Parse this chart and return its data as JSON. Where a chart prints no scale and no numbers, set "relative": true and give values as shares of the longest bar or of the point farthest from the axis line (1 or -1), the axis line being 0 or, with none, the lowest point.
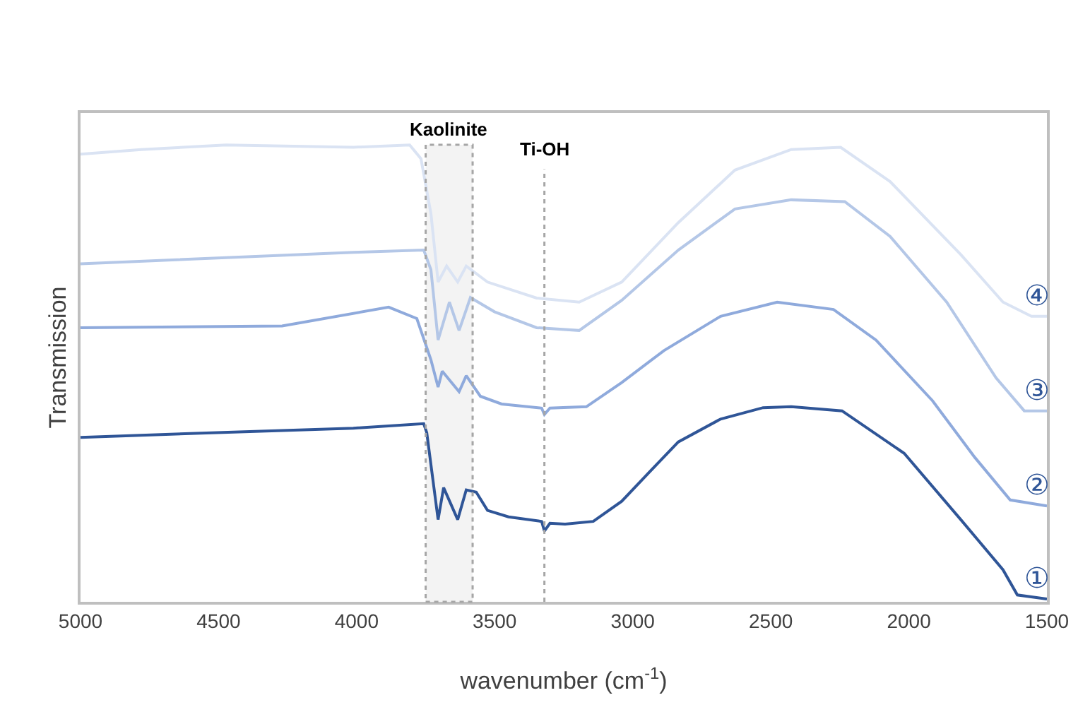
{
  "chart_data": {
    "type": "line",
    "relative": true,
    "xlabel": "wavenumber (cm$^{-1}$)",
    "ylabel": "Transmission",
    "xlim": [
      5000,
      1500
    ],
    "xticks": [
      5000,
      4500,
      4000,
      3500,
      3000,
      2500,
      2000,
      1500
    ],
    "grid": false,
    "legend": false,
    "marker": "none",
    "line_style": "solid",
    "series": [
      {
        "name": "①",
        "color": "#2f5597",
        "x": [
          5000,
          4525,
          4012,
          3757,
          3746,
          3705,
          3685,
          3634,
          3603,
          3567,
          3526,
          3450,
          3330,
          3320,
          3300,
          3245,
          3143,
          3040,
          2938,
          2835,
          2682,
          2528,
          2426,
          2242,
          2017,
          1812,
          1659,
          1607,
          1500
        ],
        "values": [
          0.36,
          0.37,
          0.38,
          0.39,
          0.37,
          0.18,
          0.25,
          0.18,
          0.245,
          0.24,
          0.2,
          0.186,
          0.176,
          0.155,
          0.172,
          0.17,
          0.176,
          0.22,
          0.285,
          0.35,
          0.4,
          0.425,
          0.427,
          0.418,
          0.325,
          0.18,
          0.07,
          0.015,
          0.006
        ]
      },
      {
        "name": "②",
        "color": "#8faadc",
        "x": [
          5000,
          4270,
          3884,
          3782,
          3731,
          3705,
          3690,
          3629,
          3603,
          3552,
          3475,
          3330,
          3320,
          3300,
          3168,
          3040,
          2887,
          2682,
          2477,
          2273,
          2119,
          1914,
          1761,
          1633,
          1500
        ],
        "values": [
          0.6,
          0.604,
          0.645,
          0.62,
          0.53,
          0.47,
          0.505,
          0.46,
          0.495,
          0.45,
          0.433,
          0.424,
          0.41,
          0.424,
          0.427,
          0.48,
          0.55,
          0.625,
          0.656,
          0.64,
          0.573,
          0.44,
          0.316,
          0.223,
          0.21
        ]
      },
      {
        "name": "③",
        "color": "#b4c7e7",
        "x": [
          5000,
          4012,
          3757,
          3731,
          3705,
          3664,
          3629,
          3588,
          3501,
          3348,
          3194,
          3040,
          2835,
          2630,
          2426,
          2232,
          2068,
          1863,
          1684,
          1582,
          1500
        ],
        "values": [
          0.74,
          0.765,
          0.77,
          0.727,
          0.573,
          0.656,
          0.594,
          0.666,
          0.635,
          0.6,
          0.594,
          0.66,
          0.77,
          0.86,
          0.88,
          0.876,
          0.8,
          0.656,
          0.49,
          0.418,
          0.418
        ]
      },
      {
        "name": "④",
        "color": "#dae3f3",
        "x": [
          5000,
          4780,
          4473,
          4012,
          3808,
          3767,
          3731,
          3705,
          3674,
          3634,
          3603,
          3526,
          3348,
          3194,
          3040,
          2835,
          2630,
          2426,
          2247,
          2068,
          1812,
          1659,
          1556,
          1500
        ],
        "values": [
          0.98,
          0.99,
          1.0,
          0.995,
          1.0,
          0.97,
          0.85,
          0.7,
          0.735,
          0.7,
          0.735,
          0.7,
          0.665,
          0.656,
          0.7,
          0.83,
          0.945,
          0.99,
          0.995,
          0.92,
          0.76,
          0.656,
          0.625,
          0.625
        ]
      }
    ],
    "bands": [
      {
        "axis": "x",
        "from": 3750,
        "to": 3580,
        "label": "Kaolinite",
        "color": "#a6a6a6"
      }
    ],
    "ref_lines": [
      {
        "axis": "x",
        "value": 3320,
        "label": "Ti-OH",
        "color": "#a6a6a6",
        "line_style": "dotted"
      }
    ]
  }
}
